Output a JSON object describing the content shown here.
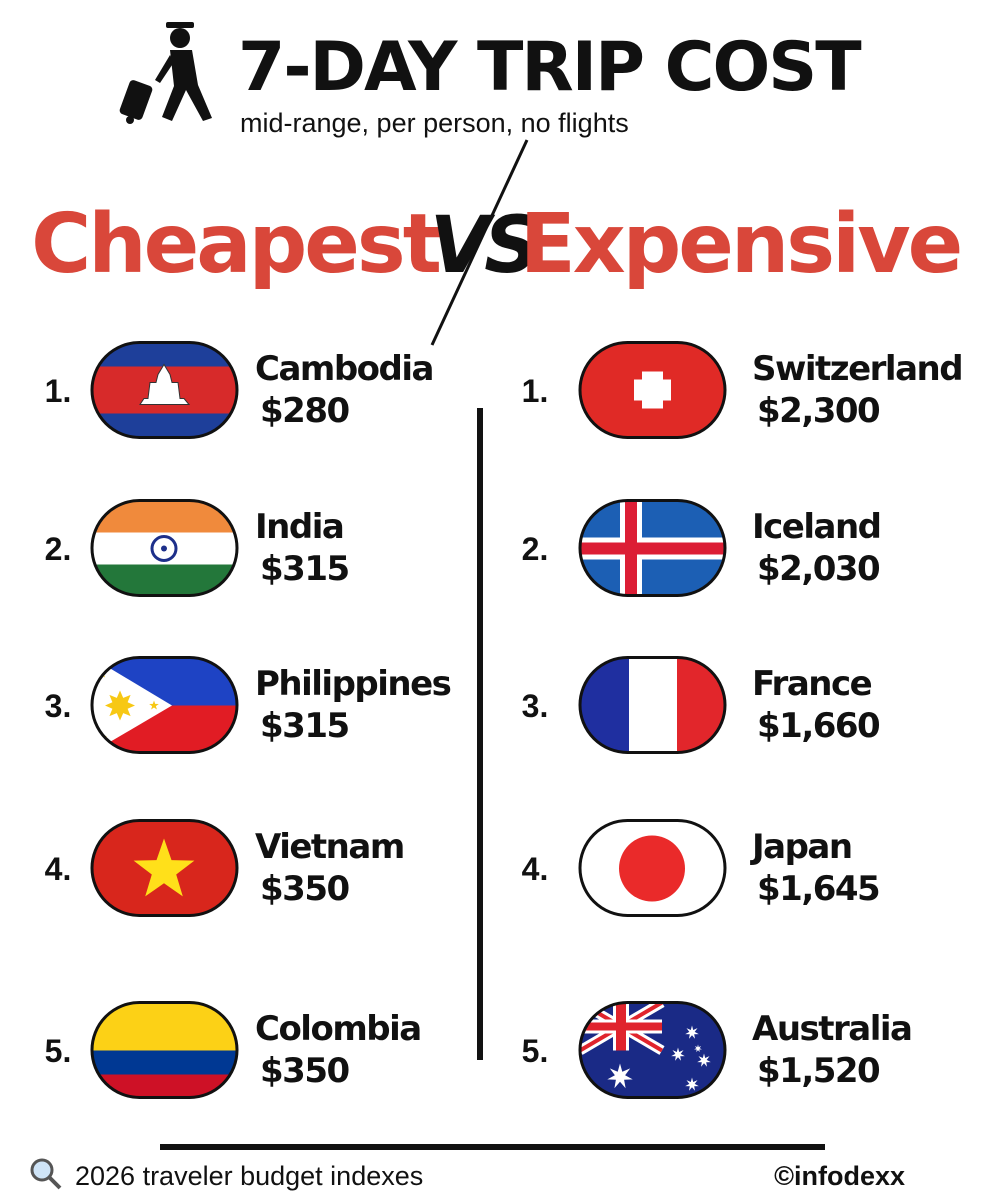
{
  "header": {
    "title": "7-DAY TRIP COST",
    "subtitle": "mid-range, per person, no flights"
  },
  "versus": {
    "left": "Cheapest",
    "middle": "VS",
    "right": "Expensive"
  },
  "cheapest": [
    {
      "rank": "1.",
      "country": "Cambodia",
      "price": "$280"
    },
    {
      "rank": "2.",
      "country": "India",
      "price": "$315"
    },
    {
      "rank": "3.",
      "country": "Philippines",
      "price": "$315"
    },
    {
      "rank": "4.",
      "country": "Vietnam",
      "price": "$350"
    },
    {
      "rank": "5.",
      "country": "Colombia",
      "price": "$350"
    }
  ],
  "expensive": [
    {
      "rank": "1.",
      "country": "Switzerland",
      "price": "$2,300"
    },
    {
      "rank": "2.",
      "country": "Iceland",
      "price": "$2,030"
    },
    {
      "rank": "3.",
      "country": "France",
      "price": "$1,660"
    },
    {
      "rank": "4.",
      "country": "Japan",
      "price": "$1,645"
    },
    {
      "rank": "5.",
      "country": "Australia",
      "price": "$1,520"
    }
  ],
  "footer": {
    "source": "2026 traveler budget indexes",
    "credit": "©infodexx"
  }
}
